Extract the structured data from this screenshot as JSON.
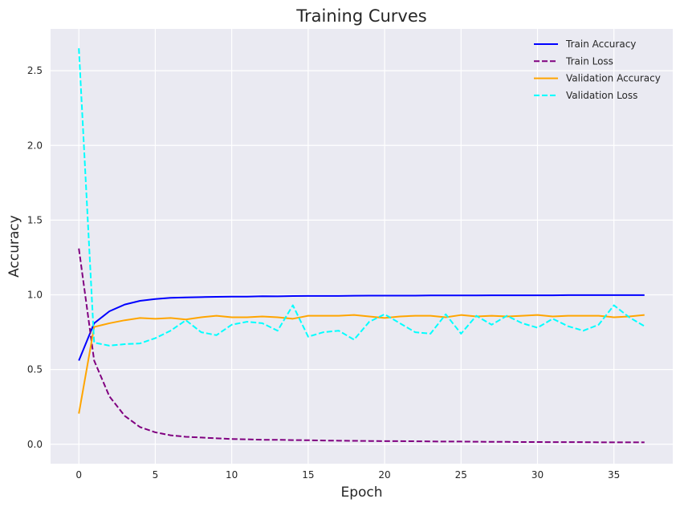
{
  "chart_data": {
    "type": "line",
    "title": "Training Curves",
    "xlabel": "Epoch",
    "ylabel": "Accuracy",
    "xlim": [
      -1.85,
      38.85
    ],
    "ylim": [
      -0.13,
      2.78
    ],
    "xticks": [
      0,
      5,
      10,
      15,
      20,
      25,
      30,
      35
    ],
    "yticks": [
      0.0,
      0.5,
      1.0,
      1.5,
      2.0,
      2.5
    ],
    "xtick_labels": [
      "0",
      "5",
      "10",
      "15",
      "20",
      "25",
      "30",
      "35"
    ],
    "ytick_labels": [
      "0.0",
      "0.5",
      "1.0",
      "1.5",
      "2.0",
      "2.5"
    ],
    "grid": true,
    "background": "#eaeaf2",
    "legend_position": "top-right",
    "x": [
      0,
      1,
      2,
      3,
      4,
      5,
      6,
      7,
      8,
      9,
      10,
      11,
      12,
      13,
      14,
      15,
      16,
      17,
      18,
      19,
      20,
      21,
      22,
      23,
      24,
      25,
      26,
      27,
      28,
      29,
      30,
      31,
      32,
      33,
      34,
      35,
      36,
      37
    ],
    "series": [
      {
        "name": "Train Accuracy",
        "color": "#0000ff",
        "dash": "solid",
        "values": [
          0.56,
          0.81,
          0.89,
          0.935,
          0.96,
          0.972,
          0.98,
          0.983,
          0.985,
          0.987,
          0.988,
          0.988,
          0.991,
          0.99,
          0.992,
          0.993,
          0.993,
          0.993,
          0.994,
          0.995,
          0.995,
          0.995,
          0.995,
          0.996,
          0.996,
          0.996,
          0.996,
          0.997,
          0.997,
          0.997,
          0.997,
          0.997,
          0.998,
          0.998,
          0.998,
          0.998,
          0.998,
          0.998
        ]
      },
      {
        "name": "Train Loss",
        "color": "#800080",
        "dash": "dashed",
        "values": [
          1.31,
          0.56,
          0.32,
          0.19,
          0.115,
          0.08,
          0.06,
          0.05,
          0.045,
          0.04,
          0.035,
          0.033,
          0.03,
          0.03,
          0.028,
          0.027,
          0.025,
          0.024,
          0.023,
          0.022,
          0.021,
          0.021,
          0.02,
          0.019,
          0.018,
          0.018,
          0.017,
          0.016,
          0.016,
          0.015,
          0.015,
          0.014,
          0.014,
          0.014,
          0.013,
          0.013,
          0.013,
          0.013
        ]
      },
      {
        "name": "Validation Accuracy",
        "color": "#ffa500",
        "dash": "solid",
        "values": [
          0.205,
          0.785,
          0.81,
          0.83,
          0.845,
          0.84,
          0.845,
          0.835,
          0.85,
          0.86,
          0.85,
          0.85,
          0.855,
          0.85,
          0.84,
          0.86,
          0.86,
          0.86,
          0.865,
          0.855,
          0.845,
          0.855,
          0.86,
          0.86,
          0.85,
          0.865,
          0.855,
          0.86,
          0.855,
          0.86,
          0.865,
          0.855,
          0.86,
          0.86,
          0.86,
          0.85,
          0.855,
          0.865
        ]
      },
      {
        "name": "Validation Loss",
        "color": "#00ffff",
        "dash": "dashed",
        "values": [
          2.65,
          0.68,
          0.66,
          0.67,
          0.675,
          0.71,
          0.76,
          0.83,
          0.75,
          0.73,
          0.8,
          0.82,
          0.81,
          0.76,
          0.93,
          0.72,
          0.75,
          0.76,
          0.7,
          0.82,
          0.87,
          0.81,
          0.75,
          0.74,
          0.87,
          0.74,
          0.86,
          0.8,
          0.86,
          0.81,
          0.78,
          0.84,
          0.79,
          0.76,
          0.8,
          0.93,
          0.85,
          0.79
        ]
      }
    ]
  }
}
